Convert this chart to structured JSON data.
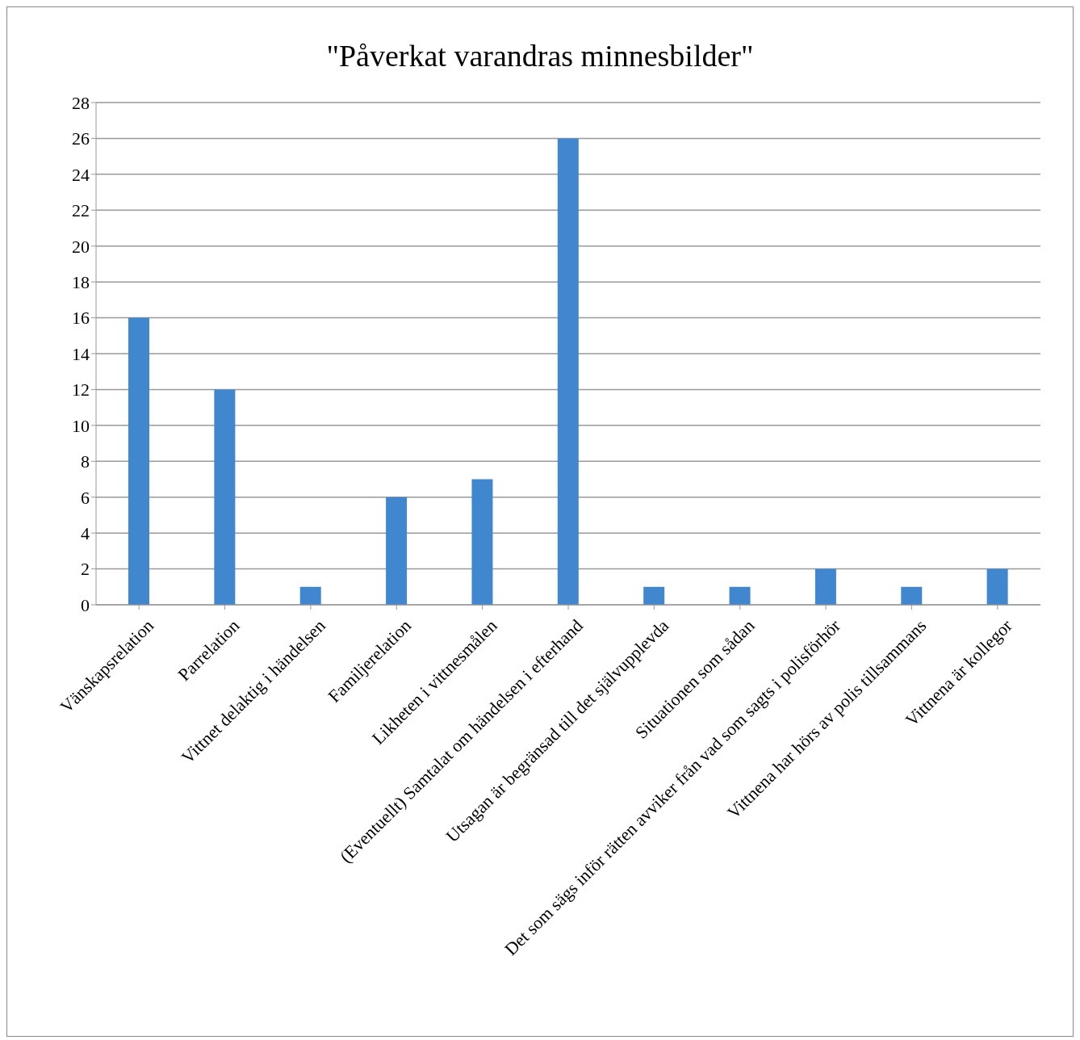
{
  "chart_data": {
    "type": "bar",
    "title": "\"Påverkat varandras minnesbilder\"",
    "categories": [
      "Vänskapsrelation",
      "Parrelation",
      "Vittnet delaktig i händelsen",
      "Familjerelation",
      "Likheten i vittnesmålen",
      "(Eventuellt) Samtalat om händelsen i efterhand",
      "Utsagan är begränsad till det självupplevda",
      "Situationen som sådan",
      "Det som sägs inför rätten avviker från vad som sagts i polisförhör",
      "Vittnena har hörs av polis tillsammans",
      "Vittnena är kollegor"
    ],
    "values": [
      16,
      12,
      1,
      6,
      7,
      26,
      1,
      1,
      2,
      1,
      2
    ],
    "color": "#4187cf",
    "ylim": [
      0,
      28
    ],
    "yticks": [
      0,
      2,
      4,
      6,
      8,
      10,
      12,
      14,
      16,
      18,
      20,
      22,
      24,
      26,
      28
    ],
    "grid": "y"
  }
}
